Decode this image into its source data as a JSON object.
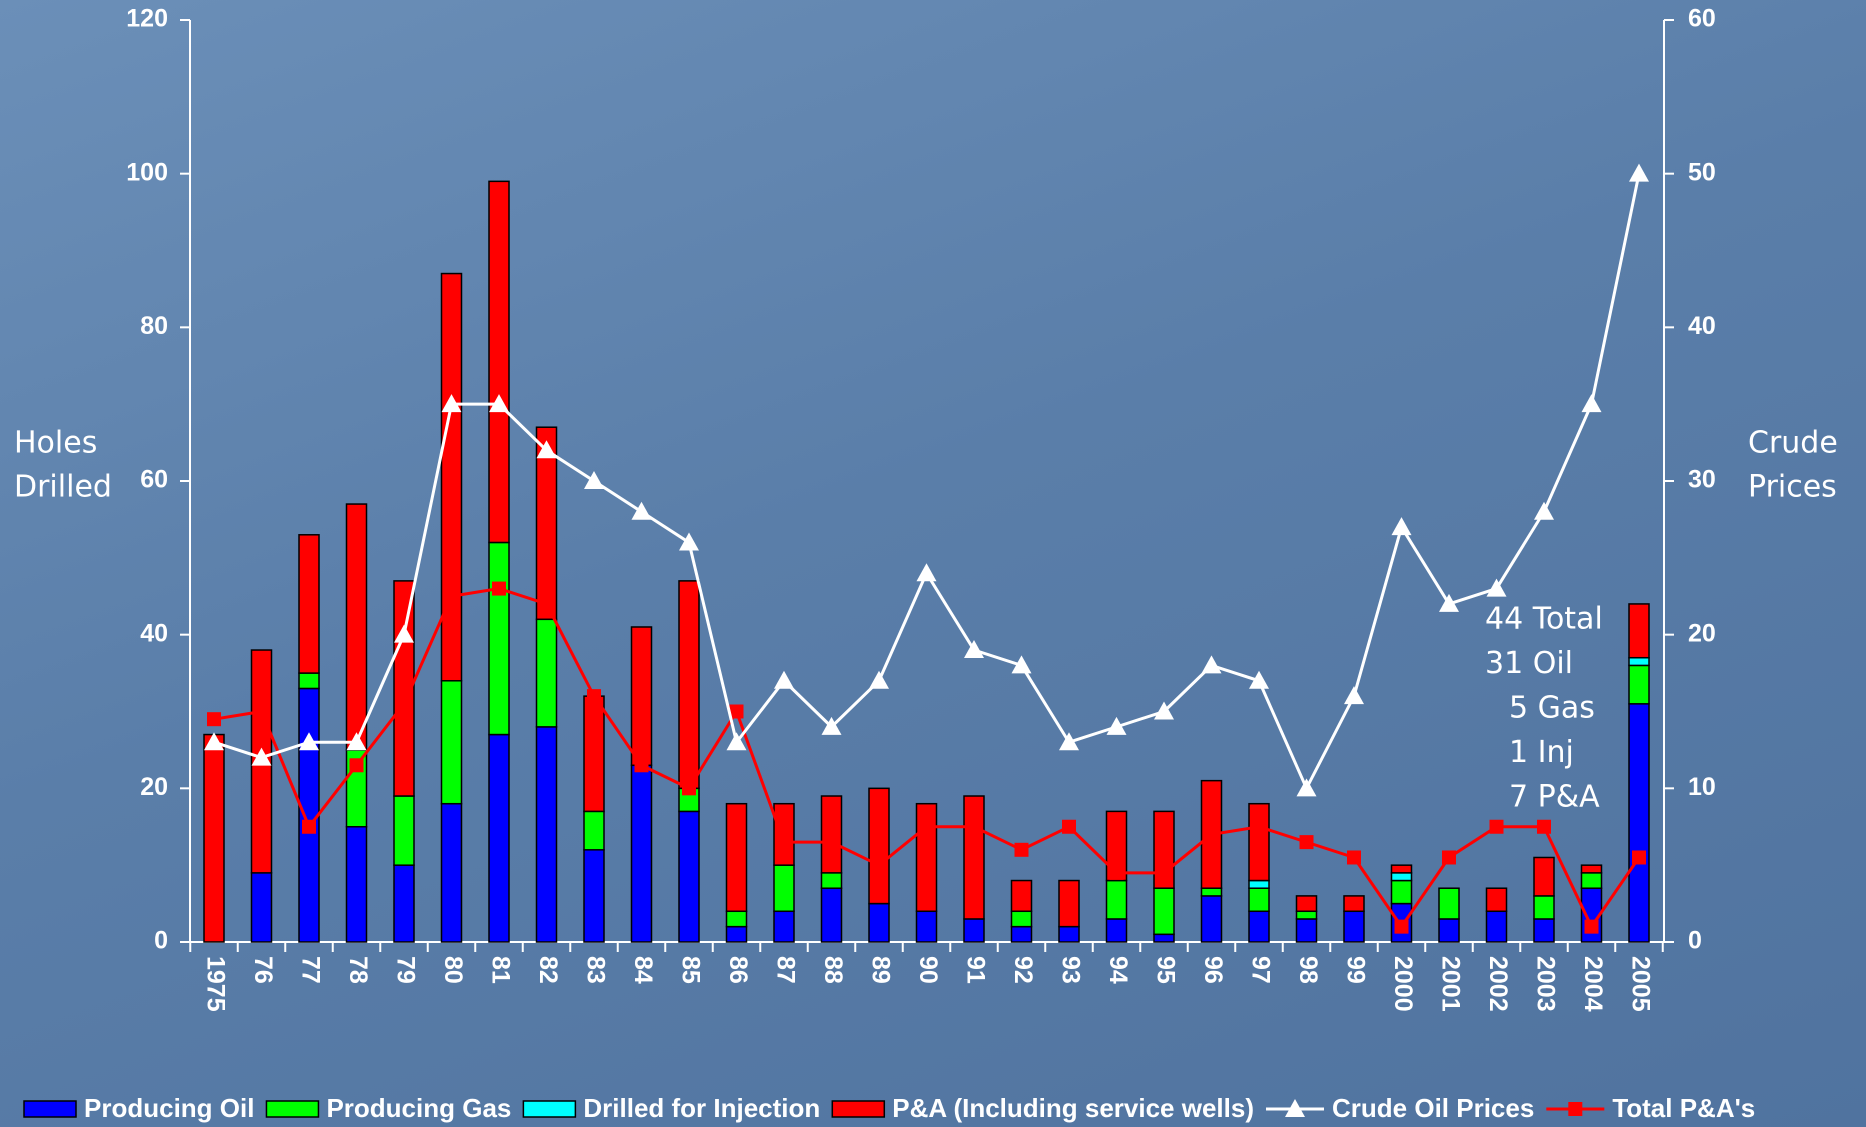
{
  "chart_data": {
    "type": "bar",
    "stacked": true,
    "y_label": [
      "Holes",
      "Drilled"
    ],
    "y2_label": [
      "Crude",
      "Prices"
    ],
    "annotation": [
      "44 Total",
      "31 Oil",
      "5 Gas",
      "1 Inj",
      "7 P&A"
    ],
    "categories": [
      "1975",
      "76",
      "77",
      "78",
      "79",
      "80",
      "81",
      "82",
      "83",
      "84",
      "85",
      "86",
      "87",
      "88",
      "89",
      "90",
      "91",
      "92",
      "93",
      "94",
      "95",
      "96",
      "97",
      "98",
      "99",
      "2000",
      "2001",
      "2002",
      "2003",
      "2004",
      "2005"
    ],
    "ylim": [
      0,
      120
    ],
    "yticks": [
      0,
      20,
      40,
      60,
      80,
      100,
      120
    ],
    "y2lim": [
      0,
      60
    ],
    "y2ticks": [
      0,
      10,
      20,
      30,
      40,
      50,
      60
    ],
    "series": [
      {
        "name": "Producing Oil",
        "type": "bar",
        "color": "#0000ff",
        "values": [
          0,
          9,
          33,
          15,
          10,
          18,
          27,
          28,
          12,
          23,
          17,
          2,
          4,
          7,
          5,
          4,
          3,
          2,
          2,
          3,
          1,
          6,
          4,
          3,
          4,
          5,
          3,
          4,
          3,
          7,
          31
        ]
      },
      {
        "name": "Producing Gas",
        "type": "bar",
        "color": "#00ff00",
        "values": [
          0,
          0,
          2,
          10,
          9,
          16,
          25,
          14,
          5,
          0,
          3,
          2,
          6,
          2,
          0,
          0,
          0,
          2,
          0,
          5,
          6,
          1,
          3,
          1,
          0,
          3,
          4,
          0,
          3,
          2,
          5
        ]
      },
      {
        "name": "Drilled for Injection",
        "type": "bar",
        "color": "#00ffff",
        "values": [
          0,
          0,
          0,
          0,
          0,
          0,
          0,
          0,
          0,
          0,
          0,
          0,
          0,
          0,
          0,
          0,
          0,
          0,
          0,
          0,
          0,
          0,
          1,
          0,
          0,
          1,
          0,
          0,
          0,
          0,
          1
        ]
      },
      {
        "name": "P&A (Including service wells)",
        "type": "bar",
        "color": "#ff0000",
        "values": [
          27,
          29,
          18,
          32,
          28,
          53,
          47,
          25,
          15,
          18,
          27,
          14,
          8,
          10,
          15,
          14,
          16,
          4,
          6,
          9,
          10,
          14,
          10,
          2,
          2,
          1,
          0,
          3,
          5,
          1,
          7
        ]
      },
      {
        "name": "Crude Oil Prices",
        "type": "line",
        "axis": "y2",
        "color": "#ffffff",
        "marker": "triangle",
        "values": [
          13,
          12,
          13,
          13,
          20,
          35,
          35,
          32,
          30,
          28,
          26,
          13,
          17,
          14,
          17,
          24,
          19,
          18,
          13,
          14,
          15,
          18,
          17,
          10,
          16,
          27,
          22,
          23,
          28,
          35,
          50
        ]
      },
      {
        "name": "Total P&A's",
        "type": "line",
        "color": "#ff0000",
        "marker": "square",
        "values": [
          29,
          30,
          15,
          23,
          31,
          45,
          46,
          44,
          32,
          23,
          20,
          30,
          13,
          13,
          10,
          15,
          15,
          12,
          15,
          9,
          9,
          14,
          15,
          13,
          11,
          2,
          11,
          15,
          15,
          2,
          11
        ]
      }
    ]
  }
}
